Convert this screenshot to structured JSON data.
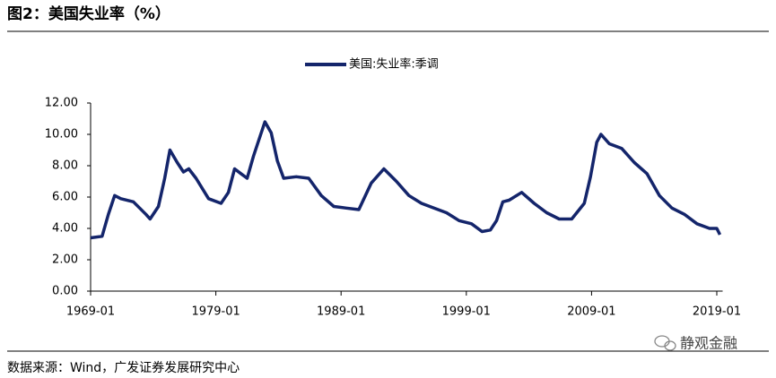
{
  "chart_data": {
    "type": "line",
    "title": "图2：美国失业率（%）",
    "source": "数据来源：Wind，广发证券发展研究中心",
    "watermark": "静观金融",
    "x": [
      "1969-01",
      "1969-12",
      "1970-06",
      "1970-12",
      "1971-06",
      "1972-06",
      "1973-06",
      "1973-10",
      "1974-06",
      "1974-12",
      "1975-05",
      "1975-12",
      "1976-06",
      "1976-11",
      "1977-06",
      "1978-06",
      "1979-06",
      "1980-01",
      "1980-07",
      "1981-01",
      "1981-07",
      "1982-01",
      "1982-06",
      "1982-12",
      "1983-06",
      "1983-12",
      "1984-06",
      "1985-06",
      "1986-06",
      "1987-06",
      "1988-06",
      "1989-06",
      "1990-06",
      "1991-06",
      "1992-06",
      "1993-06",
      "1994-06",
      "1995-06",
      "1996-06",
      "1997-06",
      "1998-06",
      "1999-06",
      "2000-04",
      "2000-12",
      "2001-06",
      "2001-12",
      "2002-06",
      "2003-06",
      "2004-06",
      "2005-06",
      "2006-06",
      "2007-06",
      "2008-06",
      "2008-12",
      "2009-06",
      "2009-10",
      "2010-06",
      "2011-06",
      "2012-06",
      "2013-06",
      "2014-06",
      "2015-06",
      "2016-06",
      "2017-06",
      "2018-06",
      "2019-01",
      "2019-04"
    ],
    "series": [
      {
        "name": "美国:失业率:季调",
        "color": "#14256b",
        "values": [
          3.4,
          3.5,
          4.9,
          6.1,
          5.9,
          5.7,
          4.9,
          4.6,
          5.4,
          7.2,
          9.0,
          8.2,
          7.6,
          7.8,
          7.2,
          5.9,
          5.6,
          6.3,
          7.8,
          7.5,
          7.2,
          8.6,
          9.6,
          10.8,
          10.1,
          8.3,
          7.2,
          7.3,
          7.2,
          6.1,
          5.4,
          5.3,
          5.2,
          6.9,
          7.8,
          7.0,
          6.1,
          5.6,
          5.3,
          5.0,
          4.5,
          4.3,
          3.8,
          3.9,
          4.5,
          5.7,
          5.8,
          6.3,
          5.6,
          5.0,
          4.6,
          4.6,
          5.6,
          7.3,
          9.5,
          10.0,
          9.4,
          9.1,
          8.2,
          7.5,
          6.1,
          5.3,
          4.9,
          4.3,
          4.0,
          4.0,
          3.6
        ]
      }
    ],
    "xlim": [
      "1969-01",
      "2019-04"
    ],
    "xticks": [
      "1969-01",
      "1979-01",
      "1989-01",
      "1999-01",
      "2009-01",
      "2019-01"
    ],
    "ylim": [
      0,
      12
    ],
    "yticks": [
      {
        "value": 0,
        "label": "0.00"
      },
      {
        "value": 2,
        "label": "2.00"
      },
      {
        "value": 4,
        "label": "4.00"
      },
      {
        "value": 6,
        "label": "6.00"
      },
      {
        "value": 8,
        "label": "8.00"
      },
      {
        "value": 10,
        "label": "10.00"
      },
      {
        "value": 12,
        "label": "12.00"
      }
    ],
    "grid": false
  }
}
